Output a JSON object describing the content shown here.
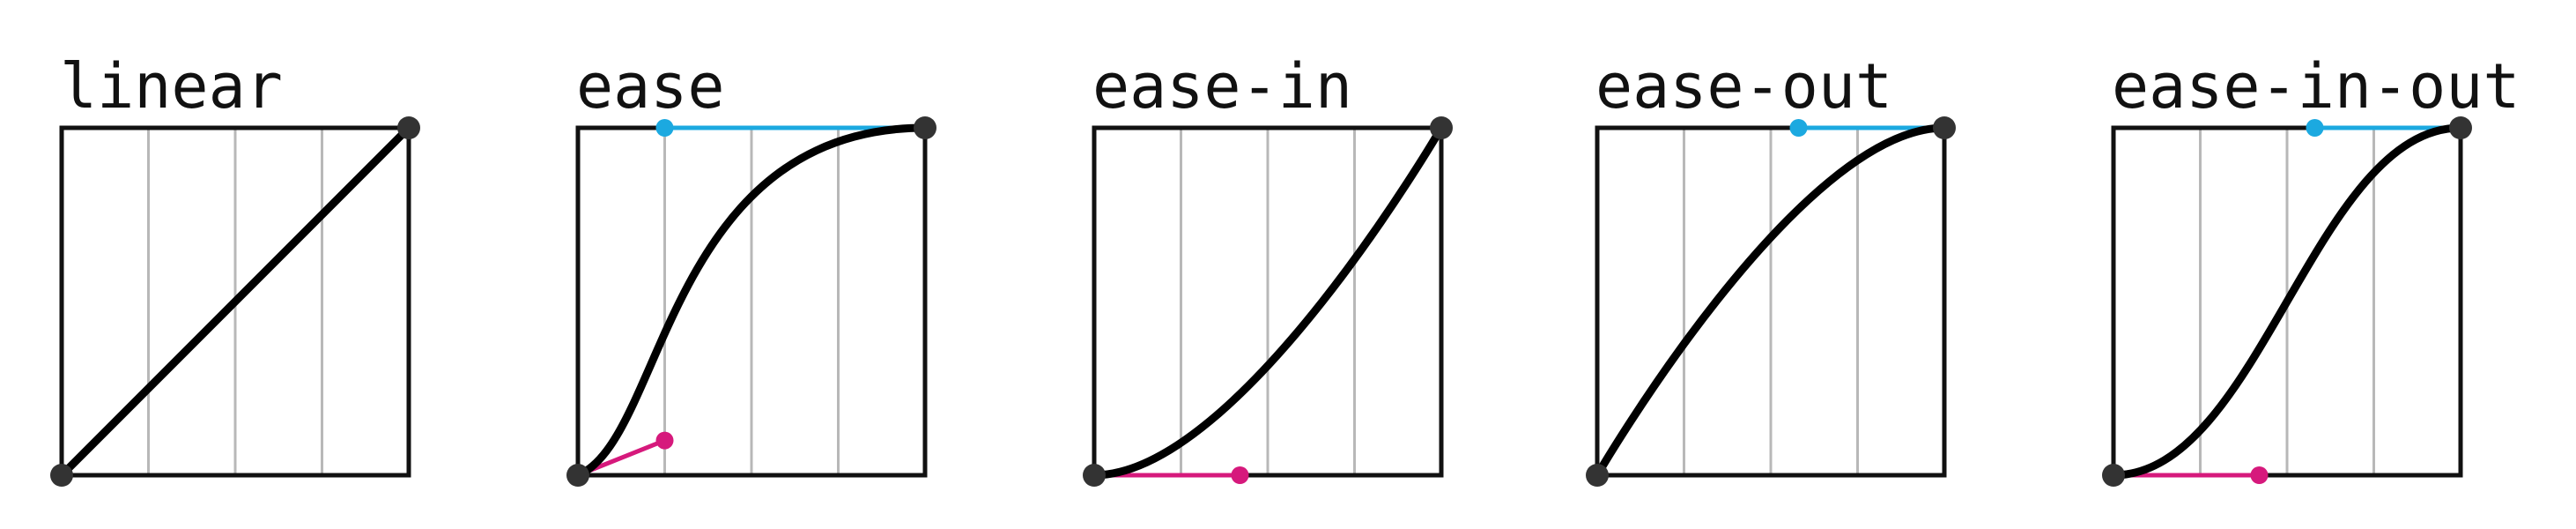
{
  "colors": {
    "curve": "#000000",
    "frame": "#111111",
    "grid": "#b8b8b8",
    "endpoint": "#333333",
    "handle_start": "#d6197c",
    "handle_end": "#1ca9e0"
  },
  "panels": [
    {
      "label": "linear",
      "curve": [
        0.0,
        0.0,
        1.0,
        1.0
      ]
    },
    {
      "label": "ease",
      "curve": [
        0.25,
        0.1,
        0.25,
        1.0
      ]
    },
    {
      "label": "ease-in",
      "curve": [
        0.42,
        0.0,
        1.0,
        1.0
      ]
    },
    {
      "label": "ease-out",
      "curve": [
        0.0,
        0.0,
        0.58,
        1.0
      ]
    },
    {
      "label": "ease-in-out",
      "curve": [
        0.42,
        0.0,
        0.58,
        1.0
      ]
    }
  ]
}
